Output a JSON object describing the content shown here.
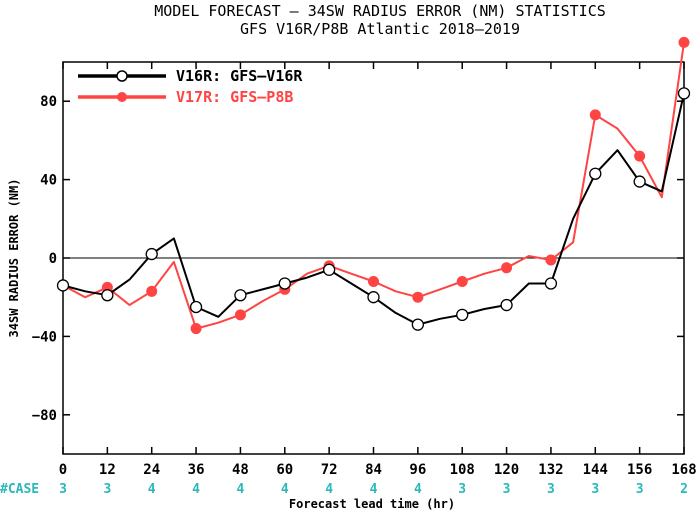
{
  "chart_data": {
    "type": "line",
    "title": "MODEL FORECAST – 34SW RADIUS ERROR (NM) STATISTICS",
    "subtitle": "GFS V16R/P8B Atlantic 2018–2019",
    "xlabel": "Forecast lead time (hr)",
    "ylabel": "34SW RADIUS ERROR (NM)",
    "xlim": [
      0,
      168
    ],
    "ylim": [
      -100,
      100
    ],
    "xticks": [
      "0",
      "12",
      "24",
      "36",
      "48",
      "60",
      "72",
      "84",
      "96",
      "108",
      "120",
      "132",
      "144",
      "156",
      "168"
    ],
    "yticks": [
      "80",
      "40",
      "0",
      "−40",
      "−80"
    ],
    "ytick_values": [
      80,
      40,
      0,
      -40,
      -80
    ],
    "zero_line": true,
    "legend_placement": "top-left",
    "case_label": "#CASE",
    "cases": [
      "3",
      "3",
      "4",
      "4",
      "4",
      "4",
      "4",
      "4",
      "4",
      "3",
      "3",
      "3",
      "3",
      "3",
      "2"
    ],
    "series": [
      {
        "name": "V16R: GFS–V16R",
        "color": "#000000",
        "marker": "open-circle",
        "line_x": [
          0,
          6,
          12,
          18,
          24,
          30,
          36,
          42,
          48,
          54,
          60,
          66,
          72,
          78,
          84,
          90,
          96,
          102,
          108,
          114,
          120,
          126,
          132,
          138,
          144,
          150,
          156,
          162,
          168
        ],
        "line_y": [
          -14,
          -17,
          -19,
          -11,
          2,
          10,
          -25,
          -30,
          -19,
          -16,
          -13,
          -10,
          -6,
          -13,
          -20,
          -28,
          -34,
          -31,
          -29,
          -26,
          -24,
          -13,
          -13,
          20,
          43,
          55,
          39,
          34,
          84
        ],
        "marker_x": [
          0,
          12,
          24,
          36,
          48,
          60,
          72,
          84,
          96,
          108,
          120,
          132,
          144,
          156,
          168
        ],
        "marker_y": [
          -14,
          -19,
          2,
          -25,
          -19,
          -13,
          -6,
          -20,
          -34,
          -29,
          -24,
          -13,
          43,
          39,
          84
        ]
      },
      {
        "name": "V17R: GFS–P8B",
        "color": "#ff4444",
        "marker": "filled-circle",
        "line_x": [
          0,
          6,
          12,
          18,
          24,
          30,
          36,
          42,
          48,
          54,
          60,
          66,
          72,
          78,
          84,
          90,
          96,
          102,
          108,
          114,
          120,
          126,
          132,
          138,
          144,
          150,
          156,
          162,
          168
        ],
        "line_y": [
          -14,
          -20,
          -15,
          -24,
          -17,
          -2,
          -36,
          -33,
          -29,
          -22,
          -16,
          -8,
          -4,
          -8,
          -12,
          -17,
          -20,
          -16,
          -12,
          -8,
          -5,
          1,
          -1,
          8,
          73,
          66,
          52,
          31,
          110
        ],
        "marker_x": [
          0,
          12,
          24,
          36,
          48,
          60,
          72,
          84,
          96,
          108,
          120,
          132,
          144,
          156,
          168
        ],
        "marker_y": [
          -14,
          -15,
          -17,
          -36,
          -29,
          -16,
          -4,
          -12,
          -20,
          -12,
          -5,
          -1,
          73,
          52,
          110
        ]
      }
    ]
  }
}
